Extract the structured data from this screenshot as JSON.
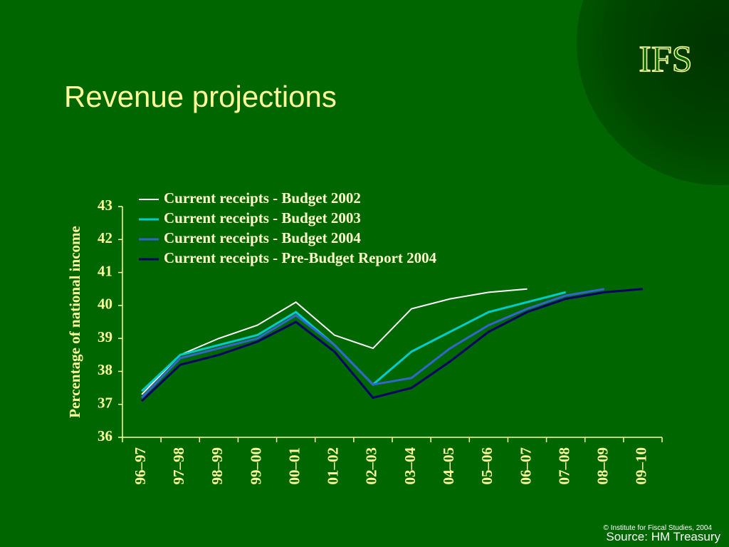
{
  "logo": "IFS",
  "chart_data": {
    "type": "line",
    "title": "Revenue projections",
    "y_label": "Percentage of national income",
    "categories": [
      "96–97",
      "97–98",
      "98–99",
      "99–00",
      "00–01",
      "01–02",
      "02–03",
      "03–04",
      "04–05",
      "05–06",
      "06–07",
      "07–08",
      "08–09",
      "09–10"
    ],
    "series": [
      {
        "name": "Current receipts - Budget 2002",
        "color": "#ffffff",
        "values": [
          37.3,
          38.5,
          39.0,
          39.4,
          40.1,
          39.1,
          38.7,
          39.9,
          40.2,
          40.4,
          40.5,
          null,
          null,
          null
        ]
      },
      {
        "name": "Current receipts - Budget 2003",
        "color": "#00cccc",
        "values": [
          37.4,
          38.5,
          38.8,
          39.1,
          39.8,
          38.8,
          37.6,
          38.6,
          39.2,
          39.8,
          40.1,
          40.4,
          null,
          null
        ]
      },
      {
        "name": "Current receipts - Budget 2004",
        "color": "#3366cc",
        "values": [
          37.2,
          38.4,
          38.7,
          39.0,
          39.7,
          38.8,
          37.6,
          37.8,
          38.7,
          39.4,
          39.9,
          40.3,
          40.5,
          null
        ]
      },
      {
        "name": "Current receipts - Pre-Budget Report 2004",
        "color": "#000066",
        "values": [
          37.1,
          38.2,
          38.5,
          38.9,
          39.5,
          38.6,
          37.2,
          37.5,
          38.3,
          39.2,
          39.8,
          40.2,
          40.4,
          40.5
        ]
      }
    ],
    "ylim": [
      36,
      43
    ],
    "yticks": [
      36,
      37,
      38,
      39,
      40,
      41,
      42,
      43
    ],
    "copyright": "© Institute for Fiscal Studies, 2004",
    "source": "Source: HM Treasury"
  }
}
